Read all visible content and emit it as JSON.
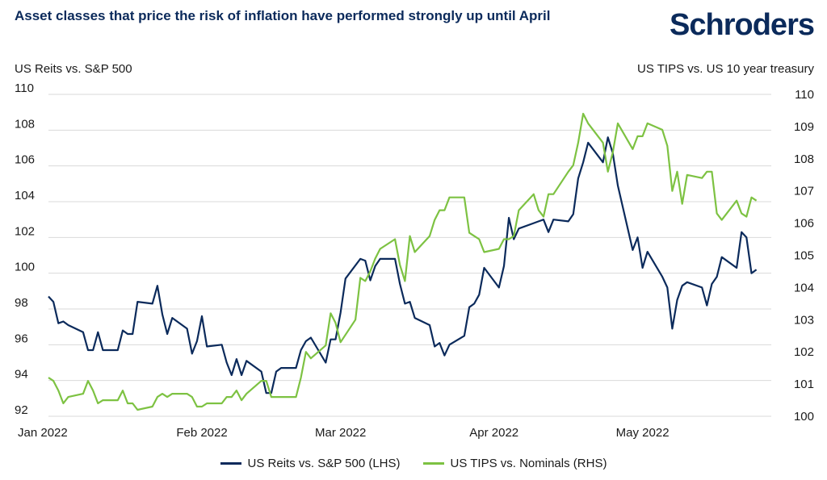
{
  "header": {
    "title": "Asset classes that price the risk of inflation have performed strongly up until April",
    "logo": "Schroders"
  },
  "chart_data": {
    "type": "line",
    "title": "Asset classes that price the risk of inflation have performed strongly up until April",
    "ylabel_left": "US Reits vs. S&P 500",
    "ylabel_right": "US TIPS vs. US 10 year treasury",
    "ylim_left": [
      92,
      110
    ],
    "ylim_right": [
      100,
      110
    ],
    "yticks_left": [
      92,
      94,
      96,
      98,
      100,
      102,
      104,
      106,
      108,
      110
    ],
    "yticks_right": [
      100,
      101,
      102,
      103,
      104,
      105,
      106,
      107,
      108,
      109,
      110
    ],
    "xlim": [
      0,
      146
    ],
    "xticks": [
      {
        "label": "Jan 2022",
        "x": 0
      },
      {
        "label": "Feb 2022",
        "x": 31
      },
      {
        "label": "Mar 2022",
        "x": 59
      },
      {
        "label": "Apr 2022",
        "x": 90
      },
      {
        "label": "May 2022",
        "x": 120
      }
    ],
    "grid": true,
    "legend_position": "bottom",
    "series": [
      {
        "name": "US Reits vs. S&P 500 (LHS)",
        "axis": "left",
        "color": "#0b2a5b",
        "points": [
          [
            0,
            98.7
          ],
          [
            1,
            98.4
          ],
          [
            2,
            97.2
          ],
          [
            3,
            97.3
          ],
          [
            4,
            97.1
          ],
          [
            7,
            96.7
          ],
          [
            8,
            95.7
          ],
          [
            9,
            95.7
          ],
          [
            10,
            96.7
          ],
          [
            11,
            95.7
          ],
          [
            14,
            95.7
          ],
          [
            15,
            96.8
          ],
          [
            16,
            96.6
          ],
          [
            17,
            96.6
          ],
          [
            18,
            98.4
          ],
          [
            21,
            98.3
          ],
          [
            22,
            99.3
          ],
          [
            23,
            97.7
          ],
          [
            24,
            96.6
          ],
          [
            25,
            97.5
          ],
          [
            28,
            96.9
          ],
          [
            29,
            95.5
          ],
          [
            30,
            96.2
          ],
          [
            31,
            97.6
          ],
          [
            32,
            95.9
          ],
          [
            35,
            96.0
          ],
          [
            36,
            95.0
          ],
          [
            37,
            94.3
          ],
          [
            38,
            95.2
          ],
          [
            39,
            94.3
          ],
          [
            40,
            95.1
          ],
          [
            43,
            94.5
          ],
          [
            44,
            93.3
          ],
          [
            45,
            93.3
          ],
          [
            46,
            94.5
          ],
          [
            47,
            94.7
          ],
          [
            50,
            94.7
          ],
          [
            51,
            95.7
          ],
          [
            52,
            96.2
          ],
          [
            53,
            96.4
          ],
          [
            56,
            95.0
          ],
          [
            57,
            96.3
          ],
          [
            58,
            96.3
          ],
          [
            59,
            97.8
          ],
          [
            60,
            99.7
          ],
          [
            63,
            100.8
          ],
          [
            64,
            100.7
          ],
          [
            65,
            99.6
          ],
          [
            66,
            100.4
          ],
          [
            67,
            100.8
          ],
          [
            70,
            100.8
          ],
          [
            71,
            99.4
          ],
          [
            72,
            98.3
          ],
          [
            73,
            98.4
          ],
          [
            74,
            97.5
          ],
          [
            77,
            97.1
          ],
          [
            78,
            95.9
          ],
          [
            79,
            96.1
          ],
          [
            80,
            95.4
          ],
          [
            81,
            96.0
          ],
          [
            84,
            96.5
          ],
          [
            85,
            98.1
          ],
          [
            86,
            98.3
          ],
          [
            87,
            98.8
          ],
          [
            88,
            100.3
          ],
          [
            91,
            99.2
          ],
          [
            92,
            100.4
          ],
          [
            93,
            103.1
          ],
          [
            94,
            101.9
          ],
          [
            95,
            102.5
          ],
          [
            98,
            102.8
          ],
          [
            99,
            102.9
          ],
          [
            100,
            103.0
          ],
          [
            101,
            102.3
          ],
          [
            102,
            103.0
          ],
          [
            105,
            102.9
          ],
          [
            106,
            103.3
          ],
          [
            107,
            105.3
          ],
          [
            108,
            106.2
          ],
          [
            109,
            107.3
          ],
          [
            112,
            106.2
          ],
          [
            113,
            107.6
          ],
          [
            114,
            106.7
          ],
          [
            115,
            104.9
          ],
          [
            118,
            101.3
          ],
          [
            119,
            102.0
          ],
          [
            120,
            100.3
          ],
          [
            121,
            101.2
          ],
          [
            124,
            99.8
          ],
          [
            125,
            99.2
          ],
          [
            126,
            96.9
          ],
          [
            127,
            98.5
          ],
          [
            128,
            99.3
          ],
          [
            129,
            99.5
          ],
          [
            132,
            99.2
          ],
          [
            133,
            98.2
          ],
          [
            134,
            99.4
          ],
          [
            135,
            99.8
          ],
          [
            136,
            100.9
          ],
          [
            139,
            100.3
          ],
          [
            140,
            102.3
          ],
          [
            141,
            102.0
          ],
          [
            142,
            100.0
          ],
          [
            143,
            100.2
          ]
        ]
      },
      {
        "name": "US TIPS vs. Nominals (RHS)",
        "axis": "right",
        "color": "#7dc242",
        "points": [
          [
            0,
            101.2
          ],
          [
            1,
            101.1
          ],
          [
            2,
            100.8
          ],
          [
            3,
            100.4
          ],
          [
            4,
            100.6
          ],
          [
            7,
            100.7
          ],
          [
            8,
            101.1
          ],
          [
            9,
            100.8
          ],
          [
            10,
            100.4
          ],
          [
            11,
            100.5
          ],
          [
            14,
            100.5
          ],
          [
            15,
            100.8
          ],
          [
            16,
            100.4
          ],
          [
            17,
            100.4
          ],
          [
            18,
            100.2
          ],
          [
            21,
            100.3
          ],
          [
            22,
            100.6
          ],
          [
            23,
            100.7
          ],
          [
            24,
            100.6
          ],
          [
            25,
            100.7
          ],
          [
            28,
            100.7
          ],
          [
            29,
            100.6
          ],
          [
            30,
            100.3
          ],
          [
            31,
            100.3
          ],
          [
            32,
            100.4
          ],
          [
            35,
            100.4
          ],
          [
            36,
            100.6
          ],
          [
            37,
            100.6
          ],
          [
            38,
            100.8
          ],
          [
            39,
            100.5
          ],
          [
            40,
            100.7
          ],
          [
            43,
            101.1
          ],
          [
            44,
            101.1
          ],
          [
            45,
            100.6
          ],
          [
            46,
            100.6
          ],
          [
            47,
            100.6
          ],
          [
            50,
            100.6
          ],
          [
            51,
            101.2
          ],
          [
            52,
            102.0
          ],
          [
            53,
            101.8
          ],
          [
            56,
            102.2
          ],
          [
            57,
            103.2
          ],
          [
            58,
            102.9
          ],
          [
            59,
            102.3
          ],
          [
            62,
            103.0
          ],
          [
            63,
            104.3
          ],
          [
            64,
            104.2
          ],
          [
            65,
            104.5
          ],
          [
            66,
            104.9
          ],
          [
            67,
            105.2
          ],
          [
            70,
            105.5
          ],
          [
            71,
            104.7
          ],
          [
            72,
            104.2
          ],
          [
            73,
            105.6
          ],
          [
            74,
            105.1
          ],
          [
            77,
            105.6
          ],
          [
            78,
            106.1
          ],
          [
            79,
            106.4
          ],
          [
            80,
            106.4
          ],
          [
            81,
            106.8
          ],
          [
            84,
            106.8
          ],
          [
            85,
            105.7
          ],
          [
            86,
            105.6
          ],
          [
            87,
            105.5
          ],
          [
            88,
            105.1
          ],
          [
            91,
            105.2
          ],
          [
            92,
            105.5
          ],
          [
            93,
            105.5
          ],
          [
            94,
            105.6
          ],
          [
            95,
            106.4
          ],
          [
            98,
            106.9
          ],
          [
            99,
            106.4
          ],
          [
            100,
            106.2
          ],
          [
            101,
            106.9
          ],
          [
            102,
            106.9
          ],
          [
            105,
            107.6
          ],
          [
            106,
            107.8
          ],
          [
            107,
            108.5
          ],
          [
            108,
            109.4
          ],
          [
            109,
            109.1
          ],
          [
            112,
            108.5
          ],
          [
            113,
            107.6
          ],
          [
            114,
            108.2
          ],
          [
            115,
            109.1
          ],
          [
            118,
            108.3
          ],
          [
            119,
            108.7
          ],
          [
            120,
            108.7
          ],
          [
            121,
            109.1
          ],
          [
            124,
            108.9
          ],
          [
            125,
            108.4
          ],
          [
            126,
            107.0
          ],
          [
            127,
            107.6
          ],
          [
            128,
            106.6
          ],
          [
            129,
            107.5
          ],
          [
            132,
            107.4
          ],
          [
            133,
            107.6
          ],
          [
            134,
            107.6
          ],
          [
            135,
            106.3
          ],
          [
            136,
            106.1
          ],
          [
            139,
            106.7
          ],
          [
            140,
            106.3
          ],
          [
            141,
            106.2
          ],
          [
            142,
            106.8
          ],
          [
            143,
            106.7
          ]
        ]
      }
    ]
  }
}
